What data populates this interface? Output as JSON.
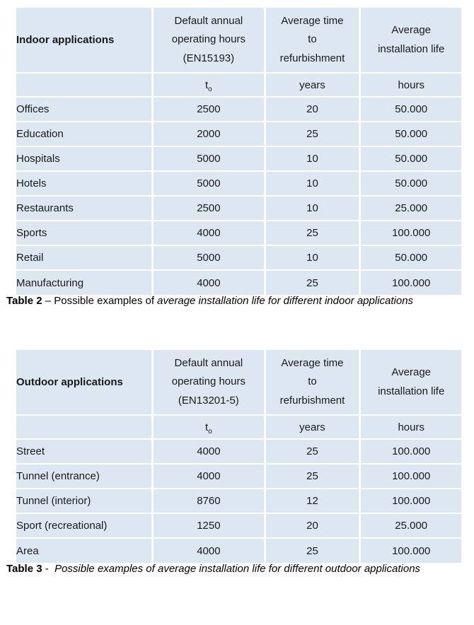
{
  "colors": {
    "cell_background": "#dde7f2",
    "grid_lines": "#ffffff",
    "text": "#1a1a1a",
    "page_background": "#ffffff"
  },
  "indoor_table": {
    "header": {
      "col1": "Indoor applications",
      "col2": "Default annual\noperating hours\n(EN15193)",
      "col3": "Average time\nto\nrefurbishment",
      "col4": "Average\ninstallation life"
    },
    "units": {
      "t_base": "t",
      "t_sub": "o",
      "years": "years",
      "hours": "hours"
    },
    "rows": [
      {
        "app": "Offices",
        "hours": "2500",
        "years": "20",
        "life": "50.000"
      },
      {
        "app": "Education",
        "hours": "2000",
        "years": "25",
        "life": "50.000"
      },
      {
        "app": "Hospitals",
        "hours": "5000",
        "years": "10",
        "life": "50.000"
      },
      {
        "app": "Hotels",
        "hours": "5000",
        "years": "10",
        "life": "50.000"
      },
      {
        "app": "Restaurants",
        "hours": "2500",
        "years": "10",
        "life": "25.000"
      },
      {
        "app": "Sports",
        "hours": "4000",
        "years": "25",
        "life": "100.000"
      },
      {
        "app": "Retail",
        "hours": "5000",
        "years": "10",
        "life": "50.000"
      },
      {
        "app": "Manufacturing",
        "hours": "4000",
        "years": "25",
        "life": "100.000"
      }
    ],
    "caption": {
      "label": "Table 2",
      "separator": " – Possible examples of ",
      "italic": "average installation life for different indoor applications"
    }
  },
  "outdoor_table": {
    "header": {
      "col1": "Outdoor applications",
      "col2": "Default annual\noperating hours\n(EN13201-5)",
      "col3": "Average time\nto\nrefurbishment",
      "col4": "Average\ninstallation life"
    },
    "units": {
      "t_base": "t",
      "t_sub": "o",
      "years": "years",
      "hours": "hours"
    },
    "rows": [
      {
        "app": "Street",
        "hours": "4000",
        "years": "25",
        "life": "100.000"
      },
      {
        "app": "Tunnel (entrance)",
        "hours": "4000",
        "years": "25",
        "life": "100.000"
      },
      {
        "app": "Tunnel (interior)",
        "hours": "8760",
        "years": "12",
        "life": "100.000"
      },
      {
        "app": "Sport (recreational)",
        "hours": "1250",
        "years": "20",
        "life": "25.000"
      },
      {
        "app": "Area",
        "hours": "4000",
        "years": "25",
        "life": "100.000"
      }
    ],
    "caption": {
      "label": "Table 3",
      "separator": " -  ",
      "italic": "Possible examples of average installation life for different outdoor applications"
    }
  }
}
